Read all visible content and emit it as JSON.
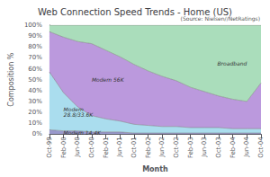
{
  "chart_data": {
    "type": "area",
    "title": "Web Connection Speed Trends - Home (US)",
    "xlabel": "Month",
    "ylabel": "Composition %",
    "annotations": [
      "(Source: Nielsen//NetRatings)"
    ],
    "categories": [
      "Oct-99",
      "Feb-00",
      "Jun-00",
      "Oct-00",
      "Feb-01",
      "Jun-01",
      "Oct-01",
      "Feb-02",
      "Jun-02",
      "Oct-02",
      "Feb-03",
      "Jun-03",
      "Oct-03",
      "Feb-04",
      "Jun-04",
      "Oct-04"
    ],
    "series": [
      {
        "name": "Modem 14.4K",
        "color": "#9999cc",
        "values": [
          4,
          3,
          3,
          2,
          2,
          2,
          1,
          1,
          1,
          1,
          1,
          1,
          1,
          1,
          1,
          1
        ]
      },
      {
        "name": "Modem\n28.8/33.6K",
        "color": "#aaddee",
        "values": [
          53,
          35,
          22,
          15,
          12,
          10,
          8,
          7,
          6,
          6,
          5,
          5,
          5,
          4,
          4,
          4
        ]
      },
      {
        "name": "Modem 56K",
        "color": "#bb99dd",
        "values": [
          37,
          51,
          60,
          66,
          63,
          59,
          55,
          50,
          46,
          42,
          37,
          33,
          29,
          27,
          25,
          42
        ]
      },
      {
        "name": "Broadband",
        "color": "#aaddbb",
        "values": [
          6,
          11,
          15,
          17,
          23,
          29,
          36,
          42,
          47,
          51,
          57,
          61,
          65,
          68,
          70,
          53
        ]
      }
    ],
    "ylim": [
      0,
      100
    ],
    "yticks": [
      {
        "value": 0,
        "label": "0%"
      },
      {
        "value": 10,
        "label": "10%"
      },
      {
        "value": 20,
        "label": "20%"
      },
      {
        "value": 30,
        "label": "30%"
      },
      {
        "value": 40,
        "label": "40%"
      },
      {
        "value": 50,
        "label": "50%"
      },
      {
        "value": 60,
        "label": "60%"
      },
      {
        "value": 70,
        "label": "70%"
      },
      {
        "value": 80,
        "label": "80%"
      },
      {
        "value": 90,
        "label": "90%"
      },
      {
        "value": 100,
        "label": "100%"
      }
    ],
    "grid": true,
    "stacked": true
  }
}
